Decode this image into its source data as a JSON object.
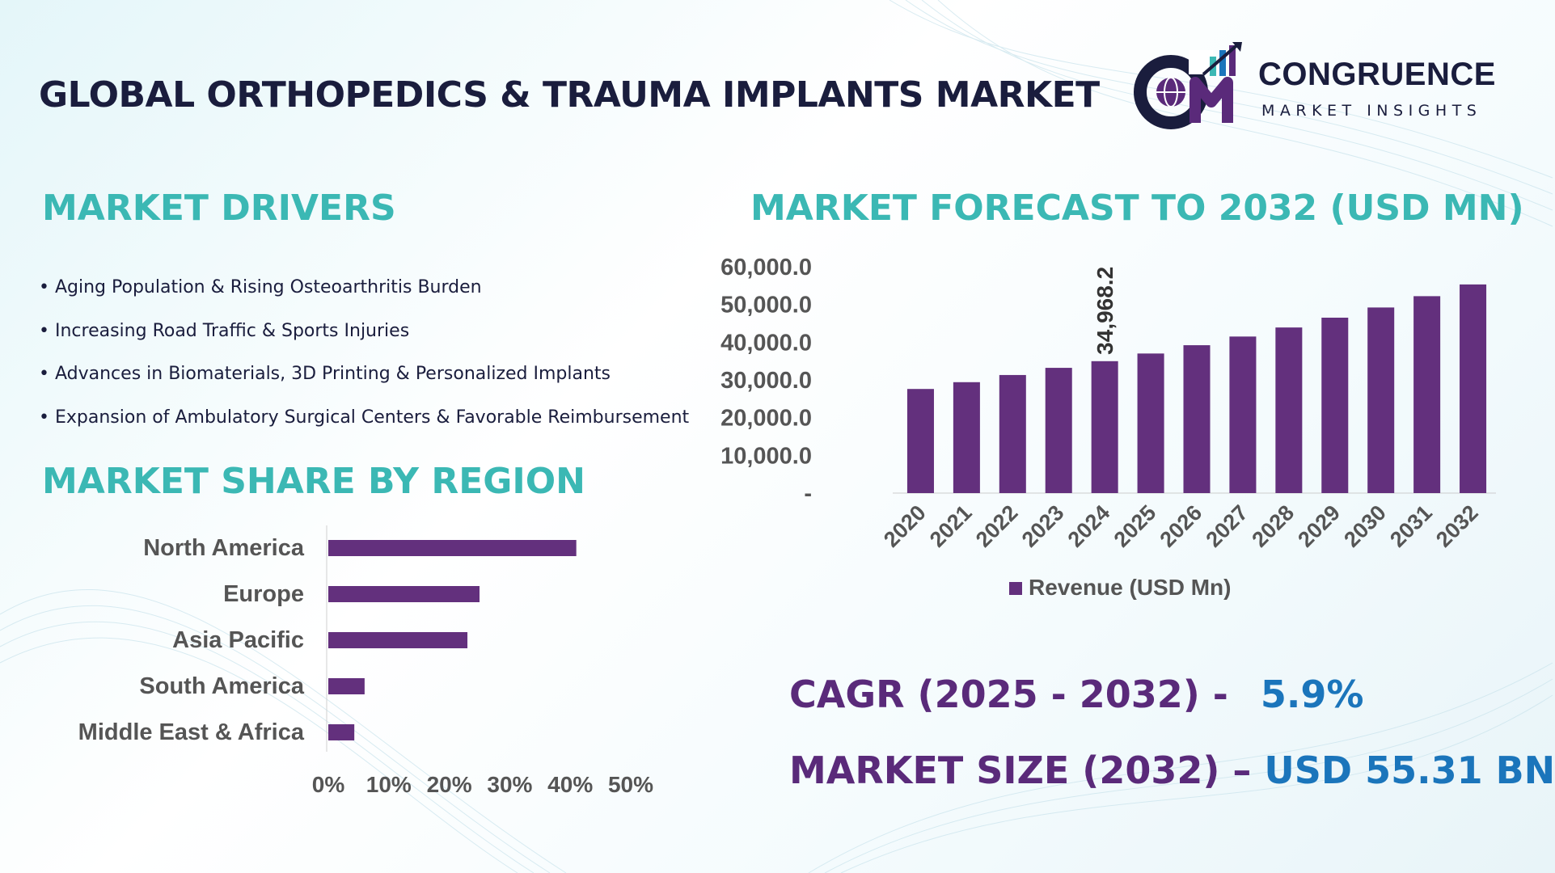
{
  "title": "GLOBAL ORTHOPEDICS & TRAUMA IMPLANTS MARKET",
  "logo": {
    "name": "CONGRUENCE",
    "subtitle": "MARKET INSIGHTS"
  },
  "colors": {
    "teal": "#3bb8b4",
    "purple_bar": "#63307d",
    "purple_text": "#5a2a7a",
    "blue_value": "#1b75bb",
    "navy": "#1a1d3d"
  },
  "sections": {
    "drivers_title": "MARKET DRIVERS",
    "region_title": "MARKET SHARE BY REGION",
    "forecast_title": "MARKET FORECAST TO 2032 (USD MN)"
  },
  "drivers": [
    "Aging Population & Rising Osteoarthritis Burden",
    "Increasing Road Traffic & Sports Injuries",
    "Advances in Biomaterials, 3D Printing & Personalized Implants",
    "Expansion of Ambulatory Surgical Centers & Favorable Reimbursement"
  ],
  "kpis": {
    "cagr_label": "CAGR (2025 - 2032) -",
    "cagr_value": "5.9%",
    "size_label": "MARKET SIZE (2032) –",
    "size_value": "USD 55.31 BN"
  },
  "chart_data": [
    {
      "type": "bar",
      "orientation": "horizontal",
      "categories": [
        "North America",
        "Europe",
        "Asia Pacific",
        "South America",
        "Middle East & Africa"
      ],
      "values": [
        41,
        25,
        23,
        6,
        4.3
      ],
      "xlim": [
        0,
        50
      ],
      "xticks": [
        "0%",
        "10%",
        "20%",
        "30%",
        "40%",
        "50%"
      ],
      "color": "#63307d"
    },
    {
      "type": "bar",
      "categories": [
        "2020",
        "2021",
        "2022",
        "2023",
        "2024",
        "2025",
        "2026",
        "2027",
        "2028",
        "2029",
        "2030",
        "2031",
        "2032"
      ],
      "values": [
        27600,
        29400,
        31300,
        33200,
        34968.2,
        37000,
        39200,
        41500,
        43900,
        46500,
        49200,
        52200,
        55310
      ],
      "ylim": [
        0,
        60000
      ],
      "yticks": [
        "-",
        "10,000.0",
        "20,000.0",
        "30,000.0",
        "40,000.0",
        "50,000.0",
        "60,000.0"
      ],
      "data_labels": [
        {
          "category": "2024",
          "text": "34,968.2"
        }
      ],
      "legend": "Revenue (USD Mn)",
      "legend_position": "bottom",
      "color": "#63307d"
    }
  ]
}
